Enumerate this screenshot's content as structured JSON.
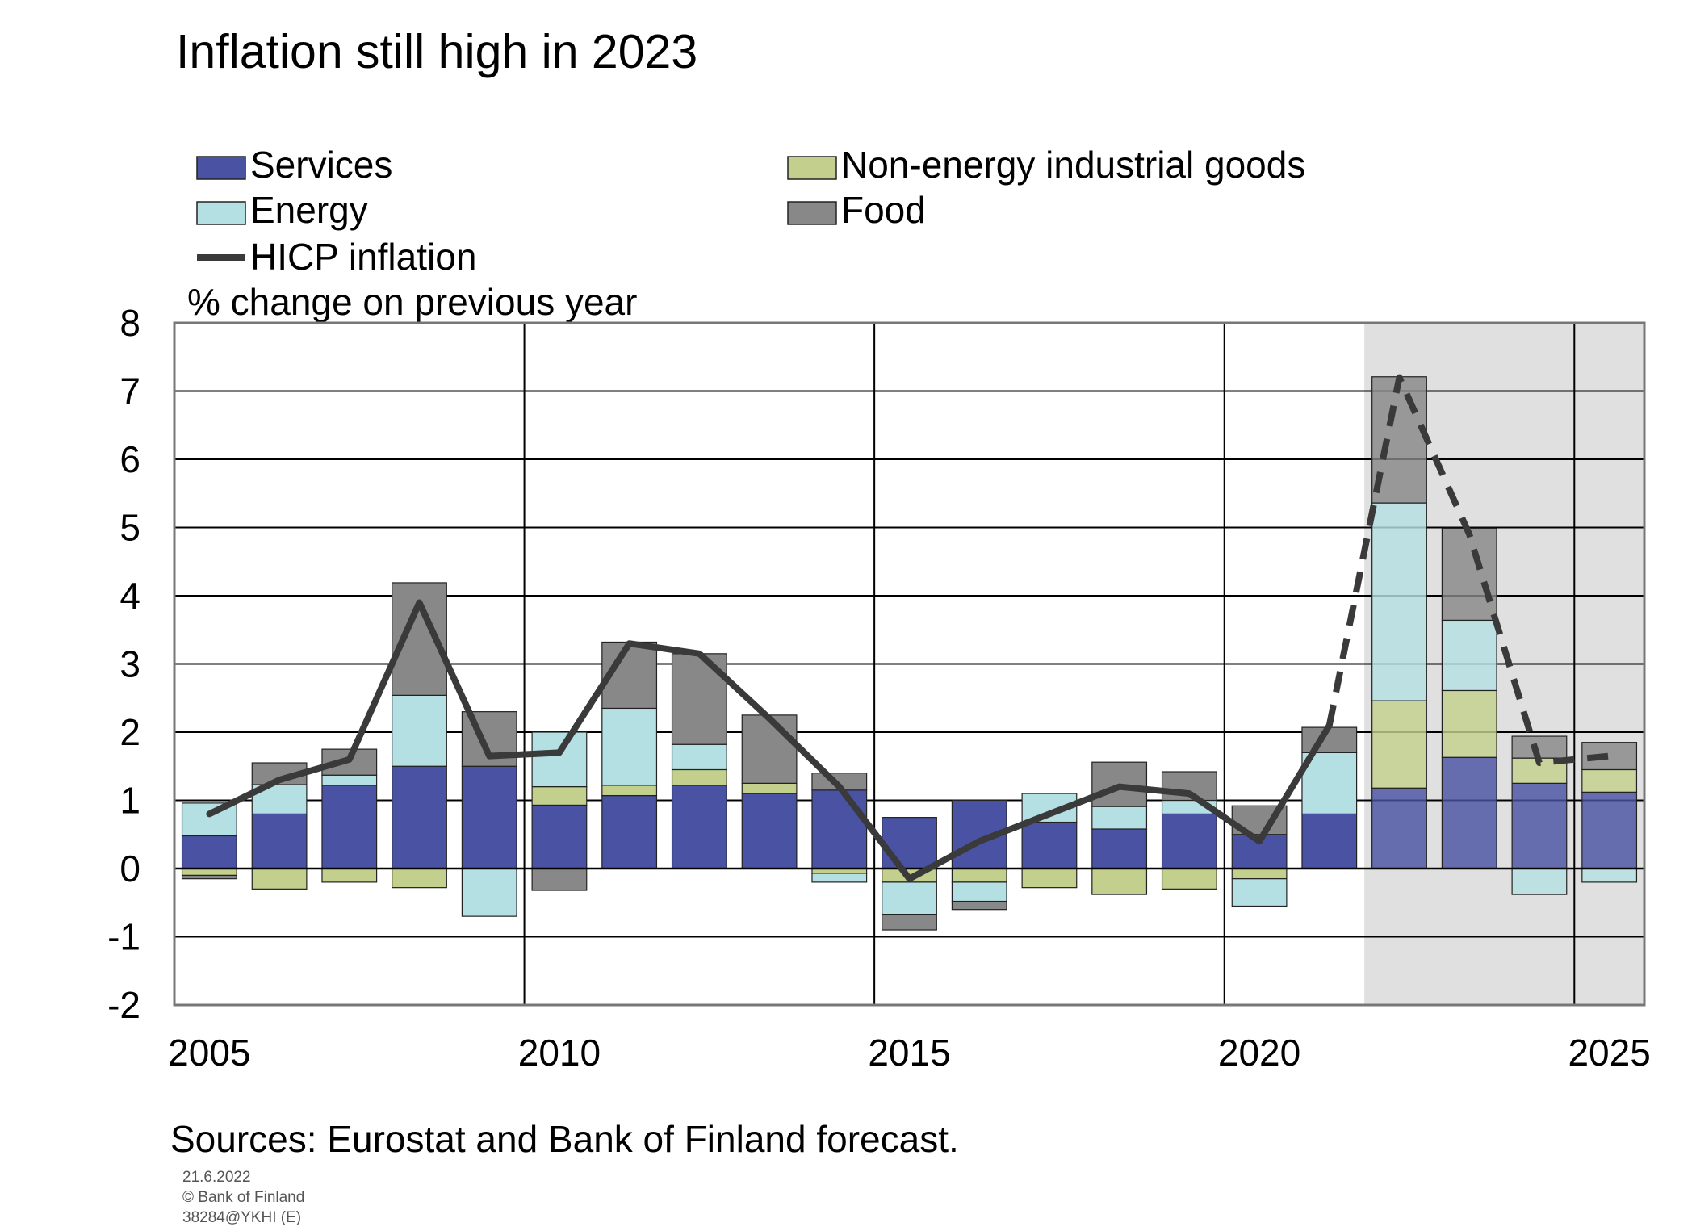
{
  "chart_data": {
    "type": "bar",
    "title": "Inflation still high in 2023",
    "ylabel": "% change on previous year",
    "ylim": [
      -2,
      8
    ],
    "yticks": [
      "8",
      "7",
      "6",
      "5",
      "4",
      "3",
      "2",
      "1",
      "0",
      "-1",
      "-2"
    ],
    "xticks": [
      "2005",
      "2010",
      "2015",
      "2020",
      "2025"
    ],
    "x": [
      2005,
      2006,
      2007,
      2008,
      2009,
      2010,
      2011,
      2012,
      2013,
      2014,
      2015,
      2016,
      2017,
      2018,
      2019,
      2020,
      2021,
      2022,
      2023,
      2024,
      2025
    ],
    "forecast_start": 2022,
    "grid": true,
    "legend_position": "top-left",
    "stacked": true,
    "series": [
      {
        "name": "Services",
        "color": "#4a53a3",
        "values": [
          0.48,
          0.8,
          1.22,
          1.5,
          1.5,
          0.93,
          1.07,
          1.22,
          1.1,
          1.15,
          0.75,
          1.0,
          0.68,
          0.58,
          0.8,
          0.5,
          0.8,
          1.18,
          1.63,
          1.25,
          1.12
        ]
      },
      {
        "name": "Non-energy industrial goods",
        "color": "#c3cf8c",
        "values": [
          -0.1,
          -0.3,
          -0.2,
          -0.28,
          0.0,
          0.27,
          0.15,
          0.23,
          0.15,
          -0.07,
          -0.2,
          -0.2,
          -0.28,
          -0.38,
          -0.3,
          -0.15,
          0.0,
          1.28,
          0.98,
          0.37,
          0.33
        ]
      },
      {
        "name": "Energy",
        "color": "#b4e0e3",
        "values": [
          0.48,
          0.43,
          0.15,
          1.04,
          -0.7,
          0.8,
          1.13,
          0.37,
          0.0,
          -0.13,
          -0.47,
          -0.28,
          0.42,
          0.33,
          0.2,
          -0.4,
          0.9,
          2.9,
          1.03,
          -0.38,
          -0.2
        ]
      },
      {
        "name": "Food",
        "color": "#888888",
        "values": [
          -0.05,
          0.32,
          0.38,
          1.65,
          0.8,
          -0.32,
          0.97,
          1.33,
          1.0,
          0.25,
          -0.23,
          -0.12,
          0.0,
          0.65,
          0.42,
          0.42,
          0.37,
          1.85,
          1.35,
          0.32,
          0.4
        ]
      }
    ],
    "line": {
      "name": "HICP inflation",
      "color": "#3a3a3a",
      "values": [
        0.8,
        1.3,
        1.6,
        3.9,
        1.65,
        1.7,
        3.3,
        3.15,
        2.2,
        1.2,
        -0.15,
        0.4,
        0.8,
        1.2,
        1.1,
        0.4,
        2.1,
        7.2,
        4.9,
        1.55,
        1.65
      ]
    },
    "source_note": "Sources: Eurostat and Bank of Finland forecast.",
    "footer": [
      "21.6.2022",
      "© Bank of Finland",
      "38284@YKHI (E)"
    ]
  }
}
